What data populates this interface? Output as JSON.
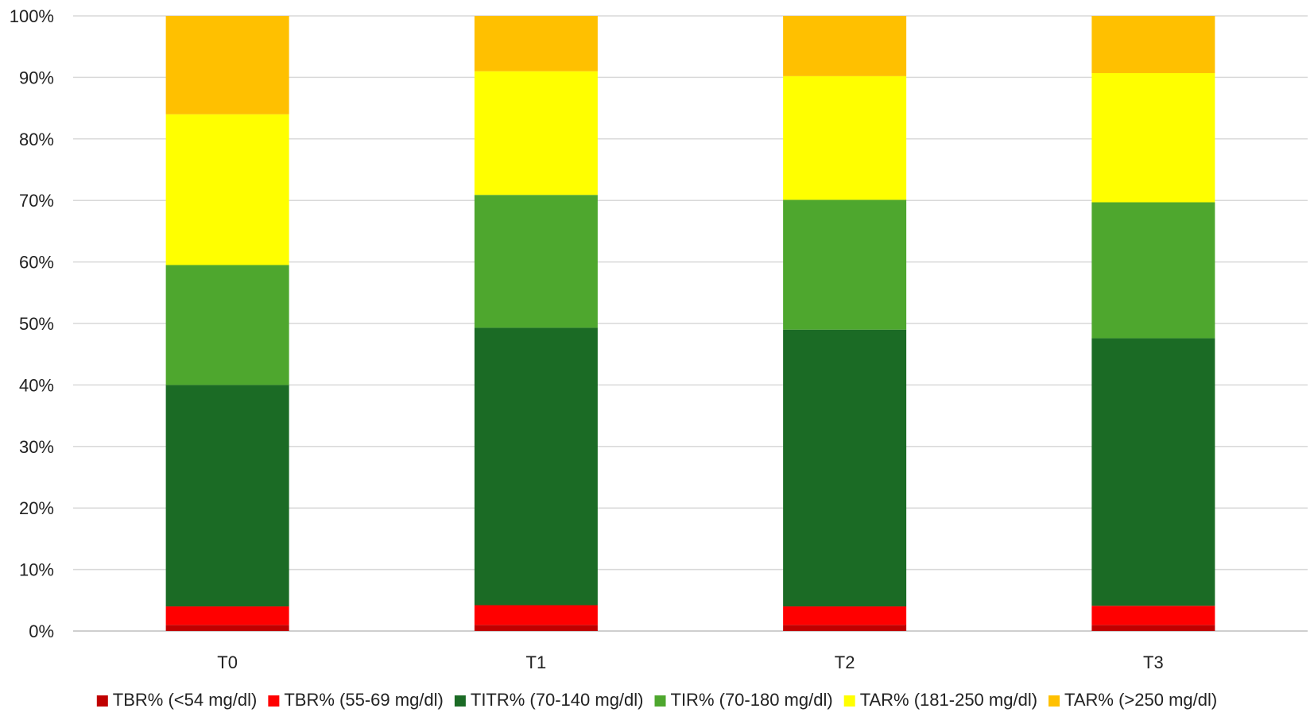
{
  "chart_data": {
    "type": "bar",
    "stacked": true,
    "title": "",
    "xlabel": "",
    "ylabel": "",
    "ylim": [
      0,
      100
    ],
    "y_tick_step": 10,
    "y_tick_suffix": "%",
    "grid": true,
    "legend_position": "bottom",
    "categories": [
      "T0",
      "T1",
      "T2",
      "T3"
    ],
    "series": [
      {
        "name": "TBR% (<54 mg/dl)",
        "color": "#C00000",
        "values": [
          1.0,
          1.0,
          1.0,
          1.0
        ]
      },
      {
        "name": "TBR% (55-69 mg/dl)",
        "color": "#FF0000",
        "values": [
          3.0,
          3.2,
          3.0,
          3.1
        ]
      },
      {
        "name": "TITR% (70-140 mg/dl)",
        "color": "#1B6B25",
        "values": [
          36.0,
          45.1,
          45.0,
          43.5
        ]
      },
      {
        "name": "TIR% (70-180 mg/dl)",
        "color": "#4EA72E",
        "values": [
          19.5,
          21.6,
          21.1,
          22.1
        ]
      },
      {
        "name": "TAR% (181-250 mg/dl)",
        "color": "#FFFF00",
        "values": [
          24.5,
          20.1,
          20.1,
          21.0
        ]
      },
      {
        "name": "TAR% (>250 mg/dl)",
        "color": "#FFC000",
        "values": [
          16.0,
          9.0,
          9.8,
          9.3
        ]
      }
    ]
  }
}
